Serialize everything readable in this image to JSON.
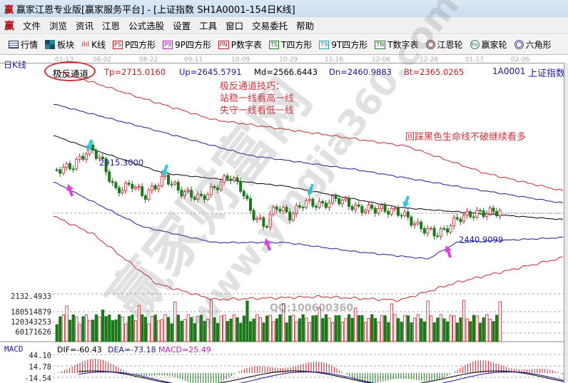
{
  "window": {
    "logo": "赢",
    "title": "赢家江恩专业版[赢家服务平台] - [上证指数  SH1A0001-154日K线]"
  },
  "menu": {
    "logo": "赢",
    "items": [
      "文件",
      "浏览",
      "资讯",
      "江恩",
      "公式选股",
      "设置",
      "工具",
      "窗口",
      "交易委托",
      "帮助"
    ]
  },
  "toolbar": {
    "items": [
      {
        "icon": "grid-icon",
        "badge": "",
        "label": "行情"
      },
      {
        "icon": "blocks-icon",
        "badge": "",
        "label": "板块"
      },
      {
        "icon": "candlestick-icon",
        "badge": "",
        "label": "K线"
      },
      {
        "icon": "ps-icon",
        "badge": "PS",
        "label": "P四方形"
      },
      {
        "icon": "p9-icon",
        "badge": "P9",
        "label": "9P四方形"
      },
      {
        "icon": "pn-icon",
        "badge": "PN",
        "label": "P数字表"
      },
      {
        "icon": "ts-icon",
        "badge": "TS",
        "label": "T四方形"
      },
      {
        "icon": "t9-icon",
        "badge": "T9",
        "label": "9T四方形"
      },
      {
        "icon": "tn-icon",
        "badge": "TN",
        "label": "T数字表"
      },
      {
        "icon": "gann-wheel-icon",
        "badge": "",
        "label": "江恩轮"
      },
      {
        "icon": "big-wheel-icon",
        "badge": "",
        "label": "赢家轮"
      },
      {
        "icon": "hexagon-icon",
        "badge": "",
        "label": "六角形"
      }
    ]
  },
  "chart": {
    "period_label": "日K线",
    "dates": [
      "01-13",
      "08-02",
      "08-22",
      "09-11",
      "10-09",
      "10-29",
      "11-16",
      "12-06",
      "12-26",
      "01-17",
      "02-06"
    ],
    "indicator_name": "极反通道",
    "tp": "Tp=2715.0160",
    "up": "Up=2645.5791",
    "md": "Md=2566.6443",
    "dn": "Dn=2460.9883",
    "bt": "Bt=2365.0265",
    "code": "1A0001",
    "name": "上证指数",
    "high_label": "2915.3000",
    "low_label": "2440.9099",
    "annotation_lines": [
      "极反通道技巧：",
      "站稳一线看高一线",
      "失守一线看低一线"
    ],
    "annotation_right": "回踩黑色生命线不破继续看多",
    "price_axis": "2132.4933",
    "volume_axis": [
      "180514879",
      "120343253",
      "60171626"
    ],
    "macd": {
      "label": "MACD",
      "dif": "DIF=-60.43",
      "dea": "DEA=-73.18",
      "macd": "MACD=25.49",
      "axis": [
        "44.10",
        "14.78",
        "-14.54"
      ]
    },
    "watermark": {
      "brand": "赢家财富网",
      "url": "www.yingjia360.com",
      "qq": "QQ:100600360"
    },
    "colors": {
      "up": "#d0202a",
      "down": "#1a7a1a",
      "channel_outer": "#c0282c",
      "channel_inner": "#1a1a9a",
      "midline": "#000000",
      "arrow_top": "#33c7d8",
      "arrow_bottom": "#e040e0"
    }
  }
}
